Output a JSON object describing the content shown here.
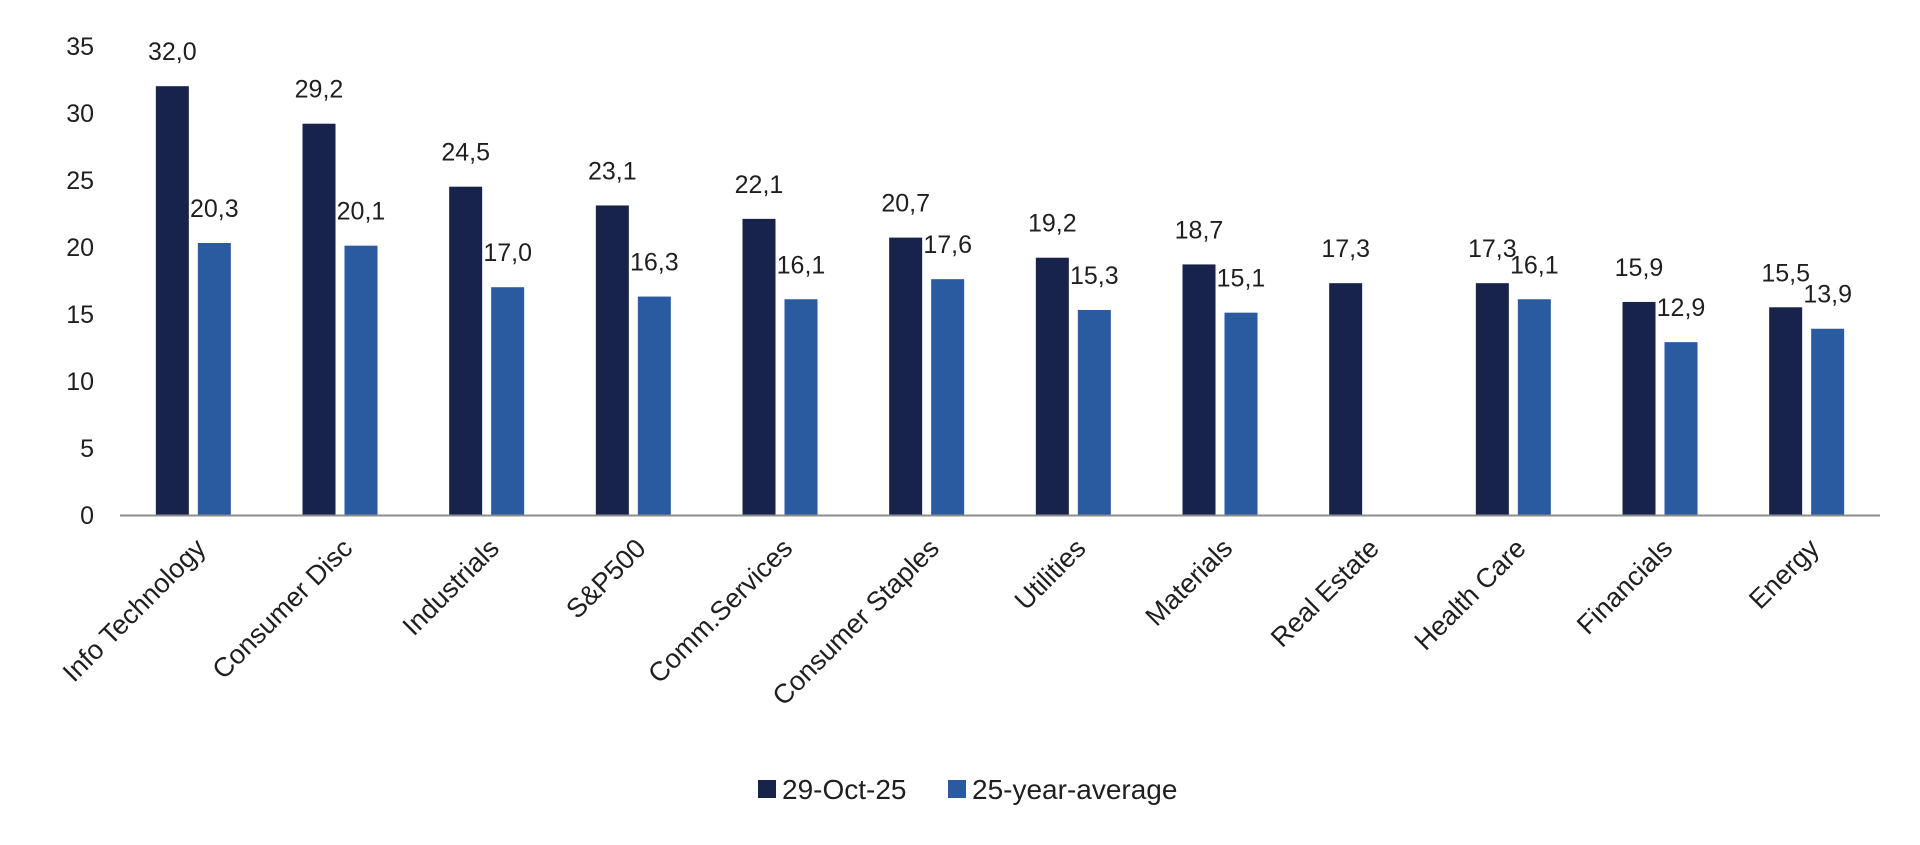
{
  "chart_data": {
    "type": "bar",
    "categories": [
      "Info Technology",
      "Consumer Disc",
      "Industrials",
      "S&P500",
      "Comm.Services",
      "Consumer Staples",
      "Utilities",
      "Materials",
      "Real Estate",
      "Health Care",
      "Financials",
      "Energy"
    ],
    "series": [
      {
        "name": "29-Oct-25",
        "color": "#17234a",
        "values": [
          32.0,
          29.2,
          24.5,
          23.1,
          22.1,
          20.7,
          19.2,
          18.7,
          17.3,
          17.3,
          15.9,
          15.5
        ],
        "labels": [
          "32,0",
          "29,2",
          "24,5",
          "23,1",
          "22,1",
          "20,7",
          "19,2",
          "18,7",
          "17,3",
          "17,3",
          "15,9",
          "15,5"
        ]
      },
      {
        "name": "25-year-average",
        "color": "#2a5aa0",
        "values": [
          20.3,
          20.1,
          17.0,
          16.3,
          16.1,
          17.6,
          15.3,
          15.1,
          null,
          16.1,
          12.9,
          13.9
        ],
        "labels": [
          "20,3",
          "20,1",
          "17,0",
          "16,3",
          "16,1",
          "17,6",
          "15,3",
          "15,1",
          "",
          "16,1",
          "12,9",
          "13,9"
        ]
      }
    ],
    "y_ticks": [
      "0",
      "5",
      "10",
      "15",
      "20",
      "25",
      "30",
      "35"
    ],
    "ylim": [
      0,
      35
    ],
    "title": "",
    "xlabel": "",
    "ylabel": "",
    "grid": false,
    "legend_position": "bottom"
  }
}
